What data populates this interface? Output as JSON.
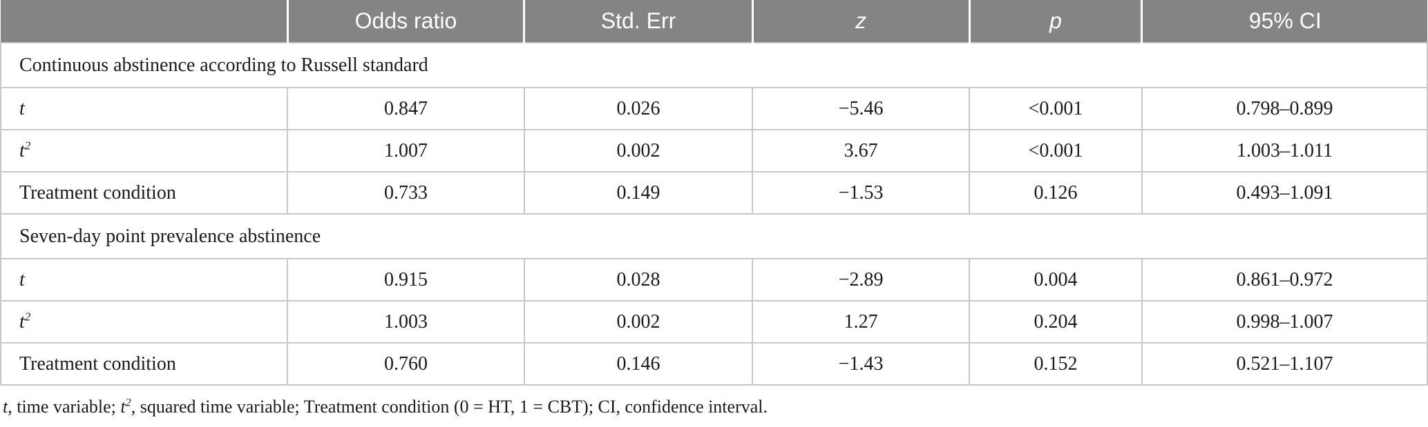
{
  "table": {
    "columns": [
      {
        "label": ""
      },
      {
        "label": "Odds ratio"
      },
      {
        "label": "Std. Err"
      },
      {
        "label": "z"
      },
      {
        "label": "p"
      },
      {
        "label": "95% CI"
      }
    ],
    "sections": [
      {
        "title": "Continuous abstinence according to Russell standard",
        "rows": [
          {
            "label": "t",
            "label_italic": true,
            "label_sup": "",
            "values": [
              "0.847",
              "0.026",
              "−5.46",
              "<0.001",
              "0.798–0.899"
            ]
          },
          {
            "label": "t",
            "label_italic": true,
            "label_sup": "2",
            "values": [
              "1.007",
              "0.002",
              "3.67",
              "<0.001",
              "1.003–1.011"
            ]
          },
          {
            "label": "Treatment condition",
            "label_italic": false,
            "label_sup": "",
            "values": [
              "0.733",
              "0.149",
              "−1.53",
              "0.126",
              "0.493–1.091"
            ]
          }
        ]
      },
      {
        "title": "Seven-day point prevalence abstinence",
        "rows": [
          {
            "label": "t",
            "label_italic": true,
            "label_sup": "",
            "values": [
              "0.915",
              "0.028",
              "−2.89",
              "0.004",
              "0.861–0.972"
            ]
          },
          {
            "label": "t",
            "label_italic": true,
            "label_sup": "2",
            "values": [
              "1.003",
              "0.002",
              "1.27",
              "0.204",
              "0.998–1.007"
            ]
          },
          {
            "label": "Treatment condition",
            "label_italic": false,
            "label_sup": "",
            "values": [
              "0.760",
              "0.146",
              "−1.43",
              "0.152",
              "0.521–1.107"
            ]
          }
        ]
      }
    ],
    "value_keys": [
      "odds-ratio",
      "std-err",
      "z",
      "p",
      "ci"
    ],
    "footnote_segments": [
      {
        "text": "t",
        "italic": true,
        "sup": ""
      },
      {
        "text": ", time variable; ",
        "italic": false,
        "sup": ""
      },
      {
        "text": "t",
        "italic": true,
        "sup": "2"
      },
      {
        "text": ", squared time variable; Treatment condition (0 = HT, 1 = CBT); CI, confidence interval.",
        "italic": false,
        "sup": ""
      }
    ],
    "colors": {
      "header_background": "#848484",
      "header_text": "#ffffff",
      "body_border": "#c8c8c8",
      "body_text": "#1a1a1a"
    }
  }
}
